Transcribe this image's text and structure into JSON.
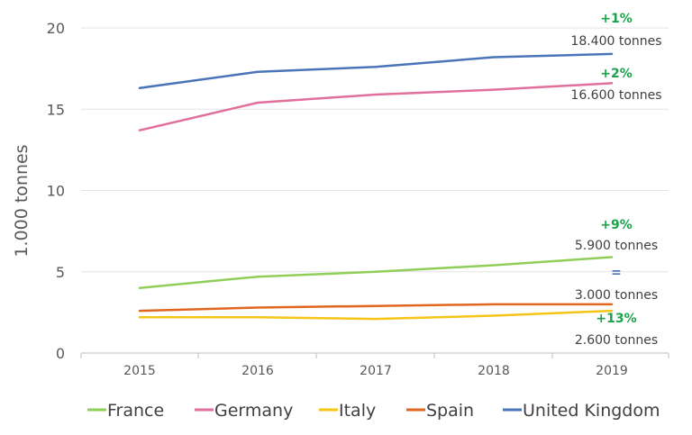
{
  "chart_data": {
    "type": "line",
    "title": "",
    "xlabel": "",
    "ylabel": "1.000 tonnes",
    "x": [
      "2015",
      "2016",
      "2017",
      "2018",
      "2019"
    ],
    "yticks": [
      "0",
      "5",
      "10",
      "15",
      "20"
    ],
    "ylim": [
      0,
      20
    ],
    "grid": "horizontal",
    "legend_position": "bottom",
    "series": [
      {
        "name": "France",
        "color": "#8fcf58",
        "values": [
          4.0,
          4.7,
          5.0,
          5.4,
          5.9
        ]
      },
      {
        "name": "Germany",
        "color": "#e06f9c",
        "values": [
          13.7,
          15.4,
          15.9,
          16.2,
          16.6
        ]
      },
      {
        "name": "Italy",
        "color": "#f5c518",
        "values": [
          2.2,
          2.2,
          2.1,
          2.3,
          2.6
        ]
      },
      {
        "name": "Spain",
        "color": "#e0661f",
        "values": [
          2.6,
          2.8,
          2.9,
          3.0,
          3.0
        ]
      },
      {
        "name": "United Kingdom",
        "color": "#4a74b8",
        "values": [
          16.3,
          17.3,
          17.6,
          18.2,
          18.4
        ]
      }
    ],
    "annotations": [
      {
        "series": "United Kingdom",
        "change": "+1%",
        "value": "18.400 tonnes",
        "change_color": "#1aa34a"
      },
      {
        "series": "Germany",
        "change": "+2%",
        "value": "16.600 tonnes",
        "change_color": "#1aa34a"
      },
      {
        "series": "France",
        "change": "+9%",
        "value": "5.900 tonnes",
        "change_color": "#1aa34a"
      },
      {
        "series": "Spain",
        "change": "=",
        "value": "3.000 tonnes",
        "change_color": "#4a74b8"
      },
      {
        "series": "Italy",
        "change": "+13%",
        "value": "2.600 tonnes",
        "change_color": "#1aa34a"
      }
    ]
  }
}
